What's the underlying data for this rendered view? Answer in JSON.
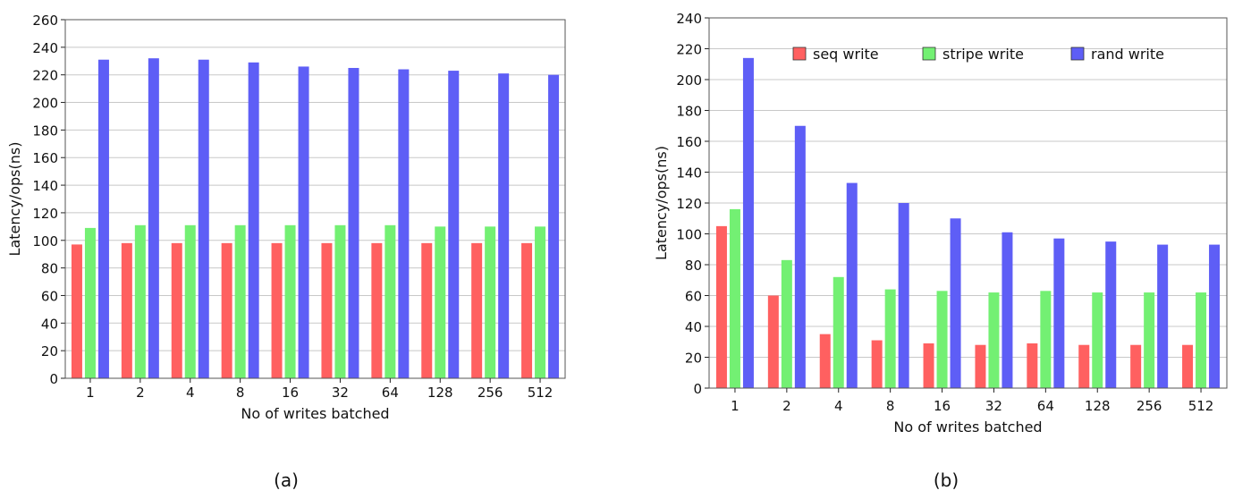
{
  "chart_data": [
    {
      "type": "bar",
      "panel_label": "(a)",
      "xlabel": "No of writes batched",
      "ylabel": "Latency/ops(ns)",
      "ylim": [
        0,
        260
      ],
      "yticks": [
        0,
        20,
        40,
        60,
        80,
        100,
        120,
        140,
        160,
        180,
        200,
        220,
        240,
        260
      ],
      "categories": [
        "1",
        "2",
        "4",
        "8",
        "16",
        "32",
        "64",
        "128",
        "256",
        "512"
      ],
      "grid": true,
      "series": [
        {
          "name": "seq write",
          "color": "#ff6060",
          "values": [
            97,
            98,
            98,
            98,
            98,
            98,
            98,
            98,
            98,
            98
          ]
        },
        {
          "name": "stripe write",
          "color": "#73f073",
          "values": [
            109,
            111,
            111,
            111,
            111,
            111,
            111,
            110,
            110,
            110
          ]
        },
        {
          "name": "rand write",
          "color": "#5e5ef6",
          "values": [
            231,
            232,
            231,
            229,
            226,
            225,
            224,
            223,
            221,
            220
          ]
        }
      ]
    },
    {
      "type": "bar",
      "panel_label": "(b)",
      "xlabel": "No of writes batched",
      "ylabel": "Latency/ops(ns)",
      "ylim": [
        0,
        240
      ],
      "yticks": [
        0,
        20,
        40,
        60,
        80,
        100,
        120,
        140,
        160,
        180,
        200,
        220,
        240
      ],
      "categories": [
        "1",
        "2",
        "4",
        "8",
        "16",
        "32",
        "64",
        "128",
        "256",
        "512"
      ],
      "grid": true,
      "legend": "top",
      "series": [
        {
          "name": "seq write",
          "color": "#ff6060",
          "values": [
            105,
            60,
            35,
            31,
            29,
            28,
            29,
            28,
            28,
            28
          ]
        },
        {
          "name": "stripe write",
          "color": "#73f073",
          "values": [
            116,
            83,
            72,
            64,
            63,
            62,
            63,
            62,
            62,
            62
          ]
        },
        {
          "name": "rand write",
          "color": "#5e5ef6",
          "values": [
            214,
            170,
            133,
            120,
            110,
            101,
            97,
            95,
            93,
            93
          ]
        }
      ]
    }
  ]
}
